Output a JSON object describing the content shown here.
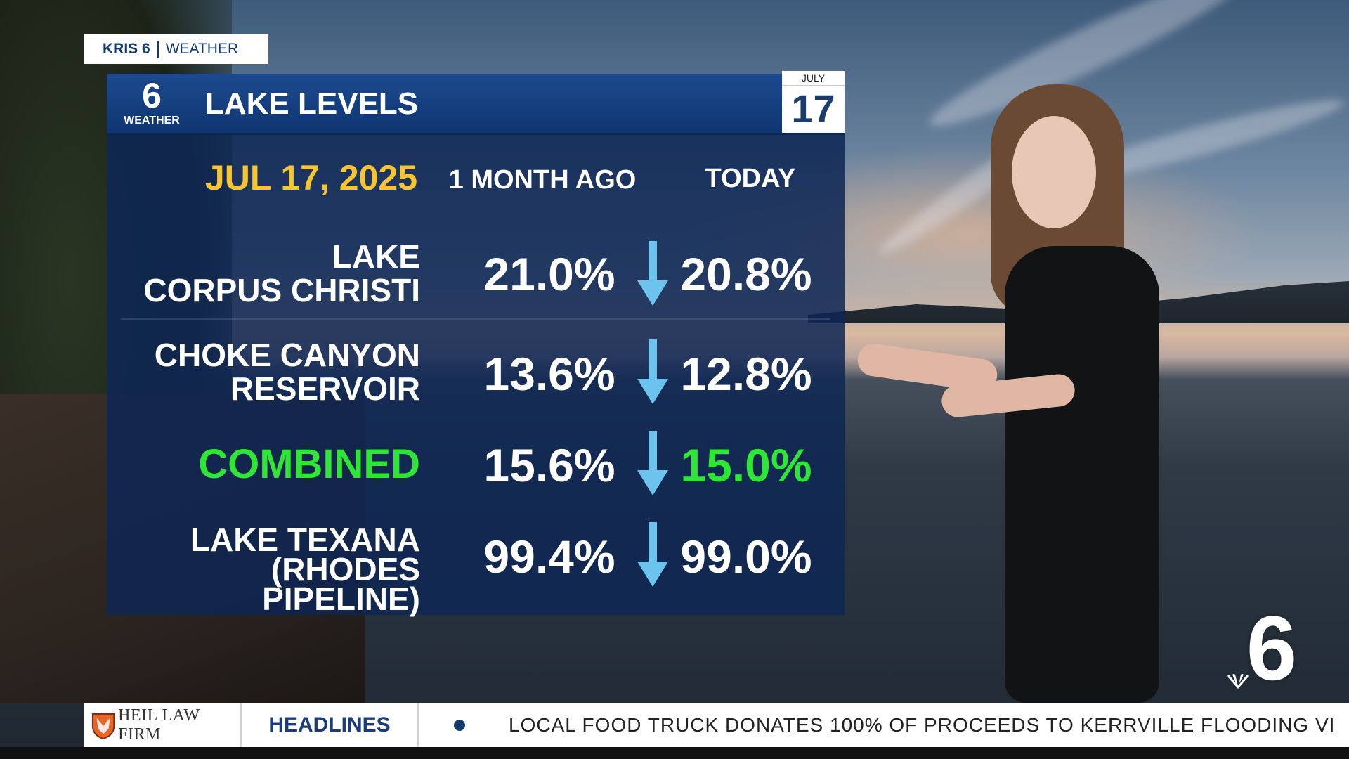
{
  "badge": {
    "station": "KRIS 6",
    "section": "WEATHER"
  },
  "graphic": {
    "logo_number": "6",
    "logo_label": "WEATHER",
    "title": "LAKE LEVELS",
    "date_month": "JULY",
    "date_day": "17",
    "date_label": "JUL 17, 2025",
    "col_past": "1 MONTH AGO",
    "col_today": "TODAY",
    "rows": [
      {
        "name_line1": "LAKE",
        "name_line2": "CORPUS CHRISTI",
        "past": "21.0%",
        "today": "20.8%",
        "trend": "down-arrow"
      },
      {
        "name_line1": "CHOKE CANYON",
        "name_line2": "RESERVOIR",
        "past": "13.6%",
        "today": "12.8%",
        "trend": "down-arrow"
      },
      {
        "name_line1": "COMBINED",
        "name_line2": "",
        "past": "15.6%",
        "today": "15.0%",
        "trend": "down-arrow"
      },
      {
        "name_line1": "LAKE TEXANA",
        "name_line2": "(RHODES PIPELINE)",
        "past": "99.4%",
        "today": "99.0%",
        "trend": "down-arrow"
      }
    ],
    "colors": {
      "date": "#f7c531",
      "combined": "#2fe537",
      "arrow": "#6cc3ee",
      "panel": "#0e2654"
    }
  },
  "corner_logo": "6",
  "ticker": {
    "sponsor": "HEIL LAW FIRM",
    "label": "HEADLINES",
    "story": "LOCAL FOOD TRUCK DONATES 100% OF PROCEEDS TO KERRVILLE FLOODING VI"
  }
}
